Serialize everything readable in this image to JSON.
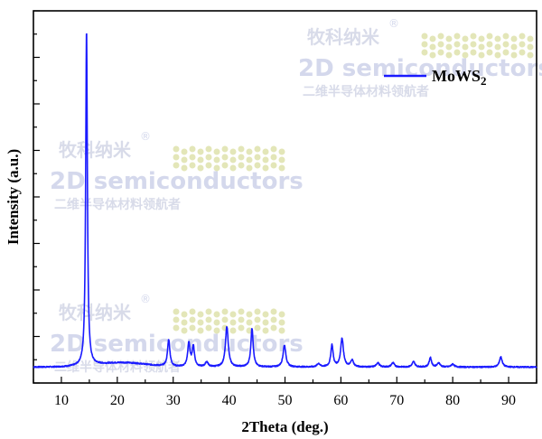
{
  "chart_data": {
    "type": "line",
    "title": "",
    "xlabel": "2Theta (deg.)",
    "ylabel": "Intensity (a.u.)",
    "xlim": [
      5,
      95
    ],
    "ylim": [
      0,
      100
    ],
    "xticks": [
      10,
      20,
      30,
      40,
      50,
      60,
      70,
      80,
      90
    ],
    "yticks_unlabeled": true,
    "legend": {
      "position": "top-right",
      "label": "MoWS",
      "label_subscript": "2"
    },
    "series": [
      {
        "name": "MoWS2",
        "color": "#1a1aff",
        "baseline": 1.5,
        "broad_hump": {
          "center": 21,
          "width": 6,
          "height": 1.3
        },
        "peaks": [
          {
            "x": 14.5,
            "y": 100,
            "width": 0.18
          },
          {
            "x": 29.2,
            "y": 8,
            "width": 0.25
          },
          {
            "x": 32.8,
            "y": 7,
            "width": 0.25
          },
          {
            "x": 33.6,
            "y": 6,
            "width": 0.25
          },
          {
            "x": 36.0,
            "y": 1.5,
            "width": 0.3
          },
          {
            "x": 39.6,
            "y": 12,
            "width": 0.3
          },
          {
            "x": 44.1,
            "y": 11.5,
            "width": 0.25
          },
          {
            "x": 49.9,
            "y": 6.5,
            "width": 0.3
          },
          {
            "x": 56.0,
            "y": 1,
            "width": 0.3
          },
          {
            "x": 58.4,
            "y": 6.5,
            "width": 0.25
          },
          {
            "x": 60.2,
            "y": 8.5,
            "width": 0.3
          },
          {
            "x": 62.0,
            "y": 2,
            "width": 0.3
          },
          {
            "x": 66.6,
            "y": 1.3,
            "width": 0.3
          },
          {
            "x": 69.3,
            "y": 1.3,
            "width": 0.3
          },
          {
            "x": 73.0,
            "y": 1.6,
            "width": 0.3
          },
          {
            "x": 76.0,
            "y": 2.8,
            "width": 0.25
          },
          {
            "x": 77.5,
            "y": 1.2,
            "width": 0.3
          },
          {
            "x": 80.0,
            "y": 0.9,
            "width": 0.3
          },
          {
            "x": 88.6,
            "y": 3,
            "width": 0.3
          }
        ]
      }
    ]
  },
  "watermark": {
    "brand_cn": "牧科纳米",
    "brand_en": "2D semiconductors",
    "slogan_cn": "二维半导体材料领航者",
    "registered": "®"
  }
}
